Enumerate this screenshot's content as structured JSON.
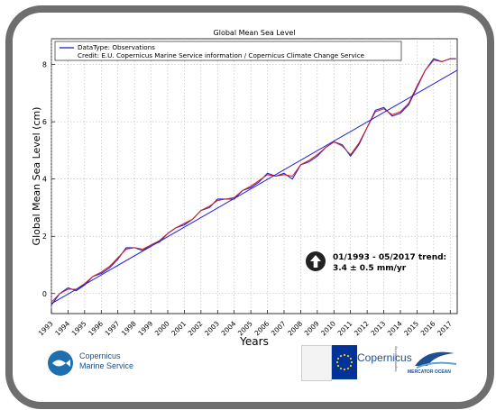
{
  "chart_data": {
    "type": "line",
    "title": "Global Mean Sea Level",
    "xlabel": "Years",
    "ylabel": "Global Mean Sea Level (cm)",
    "xlim": [
      1993.0,
      2017.42
    ],
    "ylim": [
      -0.7,
      8.9
    ],
    "x_ticks": [
      "1993",
      "1994",
      "1995",
      "1996",
      "1997",
      "1998",
      "1999",
      "2000",
      "2001",
      "2002",
      "2003",
      "2004",
      "2005",
      "2006",
      "2007",
      "2008",
      "2009",
      "2010",
      "2011",
      "2012",
      "2013",
      "2014",
      "2015",
      "2016",
      "2017"
    ],
    "y_ticks": [
      0,
      2,
      4,
      6,
      8
    ],
    "grid": true,
    "legend": {
      "placement": "top-left",
      "entries": [
        "DataType: Observations",
        "Credit: E.U. Copernicus Marine Service information / Copernicus Climate Change Service"
      ]
    },
    "series": [
      {
        "name": "DataType: Observations",
        "color": "#1f1fd6",
        "x": [
          1993.0,
          1993.5,
          1994.0,
          1994.5,
          1995.0,
          1995.5,
          1996.0,
          1996.5,
          1997.0,
          1997.5,
          1998.0,
          1998.5,
          1999.0,
          1999.5,
          2000.0,
          2000.5,
          2001.0,
          2001.5,
          2002.0,
          2002.5,
          2003.0,
          2003.5,
          2004.0,
          2004.5,
          2005.0,
          2005.5,
          2006.0,
          2006.5,
          2007.0,
          2007.5,
          2008.0,
          2008.5,
          2009.0,
          2009.5,
          2010.0,
          2010.5,
          2011.0,
          2011.5,
          2012.0,
          2012.5,
          2013.0,
          2013.5,
          2014.0,
          2014.5,
          2015.0,
          2015.5,
          2016.0,
          2016.5,
          2017.0,
          2017.35
        ],
        "y": [
          -0.4,
          0.0,
          0.2,
          0.1,
          0.3,
          0.6,
          0.7,
          0.9,
          1.2,
          1.6,
          1.6,
          1.5,
          1.7,
          1.8,
          2.1,
          2.3,
          2.4,
          2.6,
          2.9,
          3.0,
          3.3,
          3.3,
          3.3,
          3.6,
          3.7,
          3.9,
          4.2,
          4.1,
          4.2,
          4.0,
          4.5,
          4.6,
          4.8,
          5.1,
          5.3,
          5.2,
          4.8,
          5.2,
          5.8,
          6.4,
          6.5,
          6.2,
          6.3,
          6.6,
          7.2,
          7.8,
          8.2,
          8.1,
          8.2,
          8.2
        ]
      },
      {
        "name": "",
        "color": "#d62020",
        "x": [
          1993.0,
          1993.5,
          1994.0,
          1994.5,
          1995.0,
          1995.5,
          1996.0,
          1996.5,
          1997.0,
          1997.5,
          1998.0,
          1998.5,
          1999.0,
          1999.5,
          2000.0,
          2000.5,
          2001.0,
          2001.5,
          2002.0,
          2002.5,
          2003.0,
          2003.5,
          2004.0,
          2004.5,
          2005.0,
          2005.5,
          2006.0,
          2006.5,
          2007.0,
          2007.5,
          2008.0,
          2008.5,
          2009.0,
          2009.5,
          2010.0,
          2010.5,
          2011.0,
          2011.5,
          2012.0,
          2012.5,
          2013.0,
          2013.5,
          2014.0,
          2014.5,
          2015.0,
          2015.5,
          2016.0,
          2016.5,
          2017.0,
          2017.35
        ],
        "y": [
          -0.3,
          0.0,
          0.15,
          0.15,
          0.35,
          0.6,
          0.75,
          0.95,
          1.25,
          1.55,
          1.6,
          1.55,
          1.7,
          1.85,
          2.1,
          2.3,
          2.45,
          2.6,
          2.9,
          3.05,
          3.25,
          3.3,
          3.35,
          3.6,
          3.75,
          3.95,
          4.15,
          4.1,
          4.15,
          4.1,
          4.5,
          4.65,
          4.85,
          5.1,
          5.3,
          5.15,
          4.85,
          5.25,
          5.8,
          6.35,
          6.45,
          6.25,
          6.35,
          6.65,
          7.25,
          7.8,
          8.15,
          8.1,
          8.2,
          8.2
        ]
      },
      {
        "name": "",
        "color": "#1f1fd6",
        "x": [
          1993.0,
          2017.42
        ],
        "y": [
          -0.35,
          7.8
        ]
      }
    ],
    "annotation": {
      "line1": "01/1993 - 05/2017 trend:",
      "line2": "3.4 ±  0.5 mm/yr"
    }
  },
  "footer": {
    "copernicus_line1": "Copernicus",
    "copernicus_line2": "Marine Service",
    "eu_wordmark": "Copernicus",
    "implemented_by": "Implemented by",
    "mercator": "MERCATOR OCEAN"
  }
}
